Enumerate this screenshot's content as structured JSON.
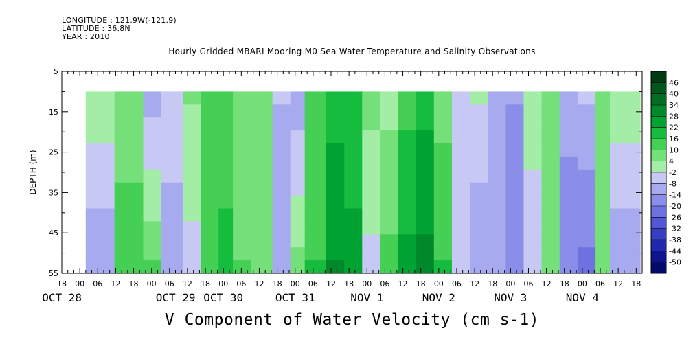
{
  "header": {
    "longitude": "LONGITUDE : 121.9W(-121.9)",
    "latitude": "LATITUDE : 36.8N",
    "year": "YEAR : 2010"
  },
  "chart_data": {
    "type": "heatmap",
    "title": "Hourly Gridded MBARI Mooring M0 Sea Water Temperature and Salinity Observations",
    "xlabel": "V Component of Water Velocity (cm s-1)",
    "ylabel": "DEPTH (m)",
    "y_ticks": [
      5,
      15,
      25,
      35,
      45,
      55
    ],
    "ylim": [
      5,
      55
    ],
    "y_inverted": true,
    "data_depth_range": [
      10,
      55
    ],
    "x_tick_hours": [
      "18",
      "00",
      "06",
      "12",
      "18",
      "00",
      "06",
      "12",
      "18",
      "00",
      "06",
      "12",
      "18",
      "00",
      "06",
      "12",
      "18",
      "00",
      "06",
      "12",
      "18",
      "00",
      "06",
      "12",
      "18",
      "00",
      "06",
      "12",
      "18",
      "00",
      "06",
      "12",
      "18"
    ],
    "x_day_labels": [
      "OCT 28",
      "OCT 29",
      "OCT 30",
      "OCT 31",
      "NOV  1",
      "NOV  2",
      "NOV  3",
      "NOV  4"
    ],
    "x_time_range": [
      "2010-10-27T18:00",
      "2010-11-04T20:00"
    ],
    "data_time_start": "2010-10-28T02:00",
    "colorbar_levels": [
      "46",
      "40",
      "34",
      "28",
      "22",
      "16",
      "10",
      "4",
      "-2",
      "-8",
      "-14",
      "-20",
      "-26",
      "-32",
      "-38",
      "-44",
      "-50"
    ],
    "colorbar_colors": [
      "#003a12",
      "#00561c",
      "#006e22",
      "#00882a",
      "#00a232",
      "#16bc3e",
      "#44d055",
      "#74e07a",
      "#a4eda6",
      "#c8c8f4",
      "#a8aaf0",
      "#8a8ee8",
      "#6e72e0",
      "#5258d4",
      "#383ec4",
      "#2228ac",
      "#10148c",
      "#020a6a"
    ],
    "profile_time_day_offset": [
      0,
      0.4,
      0.8,
      1.05,
      1.35,
      1.6,
      1.85,
      2.05,
      2.3,
      2.6,
      2.85,
      3.05,
      3.35,
      3.6,
      3.85,
      4.1,
      4.35,
      4.6,
      4.85,
      5.1,
      5.35,
      5.6,
      5.85,
      6.1,
      6.35,
      6.6,
      6.85,
      7.1,
      7.3
    ],
    "profile_v_surface": [
      2,
      8,
      -10,
      -6,
      4,
      10,
      12,
      6,
      4,
      -8,
      -12,
      10,
      20,
      18,
      6,
      2,
      14,
      20,
      8,
      -4,
      -2,
      -10,
      -14,
      2,
      6,
      -12,
      -8,
      4,
      2
    ],
    "profile_v_bottom": [
      -14,
      12,
      10,
      -10,
      -4,
      12,
      18,
      10,
      4,
      -14,
      6,
      16,
      28,
      24,
      -4,
      12,
      24,
      30,
      16,
      -6,
      -14,
      -12,
      -20,
      -8,
      8,
      -18,
      -22,
      6,
      -14
    ]
  }
}
